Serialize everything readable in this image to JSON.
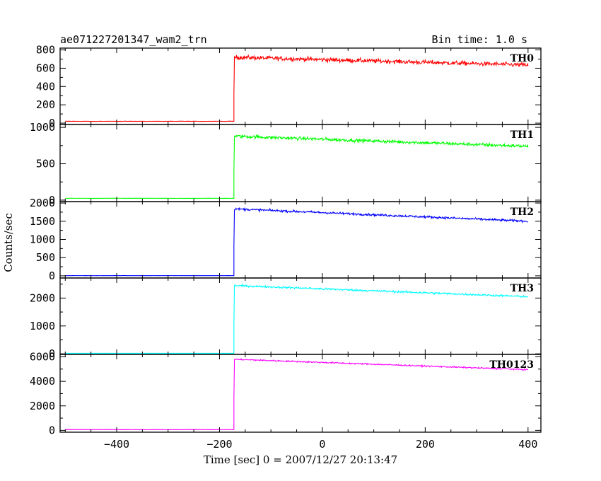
{
  "header": {
    "title": "ae071227201347_wam2_trn",
    "bin_time": "Bin time: 1.0 s"
  },
  "chart_data": {
    "type": "line",
    "xlabel": "Time [sec] 0 = 2007/12/27 20:13:47",
    "ylabel": "Counts/sec",
    "xlim": [
      -510,
      425
    ],
    "x_ticks": [
      -400,
      -200,
      0,
      200,
      400
    ],
    "x_tick_labels": [
      "−400",
      "−200",
      "0",
      "200",
      "400"
    ],
    "trigger_time": -172,
    "data_start": -500,
    "data_end": 400,
    "panels": [
      {
        "name": "TH0",
        "color": "#ff0000",
        "ylim": [
          -15,
          820
        ],
        "yticks": [
          0,
          200,
          400,
          600,
          800
        ],
        "ytick_labels": [
          "0",
          "200",
          "400",
          "600",
          "800"
        ],
        "baseline": 20,
        "peak": 720,
        "end_level": 635,
        "noise": 30
      },
      {
        "name": "TH1",
        "color": "#00ff00",
        "ylim": [
          -20,
          1040
        ],
        "yticks": [
          0,
          500,
          1000
        ],
        "ytick_labels": [
          "0",
          "500",
          "1000"
        ],
        "baseline": 25,
        "peak": 880,
        "end_level": 740,
        "noise": 30
      },
      {
        "name": "TH2",
        "color": "#0000ff",
        "ylim": [
          -60,
          2040
        ],
        "yticks": [
          0,
          500,
          1000,
          1500,
          2000
        ],
        "ytick_labels": [
          "0",
          "500",
          "1000",
          "1500",
          "2000"
        ],
        "baseline": 5,
        "peak": 1840,
        "end_level": 1500,
        "noise": 40
      },
      {
        "name": "TH3",
        "color": "#00ffff",
        "ylim": [
          -20,
          2720
        ],
        "yticks": [
          0,
          1000,
          2000
        ],
        "ytick_labels": [
          "0",
          "1000",
          "2000"
        ],
        "baseline": 20,
        "peak": 2450,
        "end_level": 2050,
        "noise": 45
      },
      {
        "name": "TH0123",
        "color": "#ff00ff",
        "ylim": [
          -150,
          6200
        ],
        "yticks": [
          0,
          2000,
          4000,
          6000
        ],
        "ytick_labels": [
          "0",
          "2000",
          "4000",
          "6000"
        ],
        "baseline": 60,
        "peak": 5800,
        "end_level": 4950,
        "noise": 70
      }
    ]
  }
}
